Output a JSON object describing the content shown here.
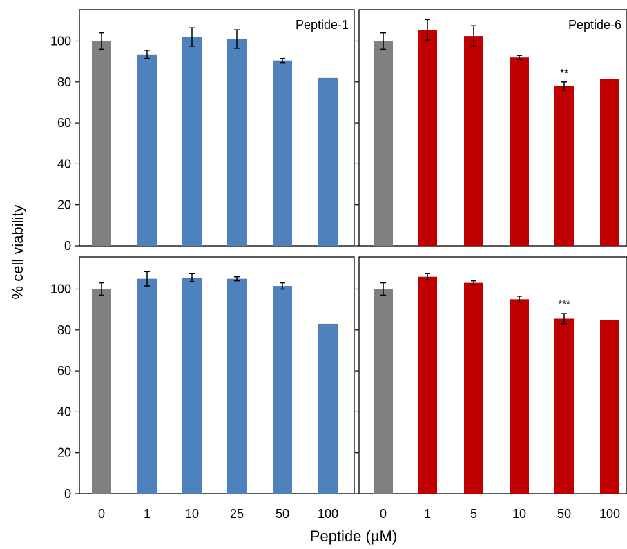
{
  "figure": {
    "ylabel": "% cell viability",
    "xlabel": "Peptide (µM)"
  },
  "chart_data": [
    {
      "type": "bar",
      "panel": "top-left",
      "title": "Peptide-1",
      "categories": [
        "0",
        "1",
        "10",
        "25",
        "50",
        "100"
      ],
      "values": [
        100,
        93.5,
        102,
        101,
        90.5,
        82
      ],
      "errors": [
        4,
        2,
        4.5,
        4.5,
        1,
        0
      ],
      "bar_colors": [
        "#808080",
        "#4f81bd",
        "#4f81bd",
        "#4f81bd",
        "#4f81bd",
        "#4f81bd"
      ],
      "annotations": [
        "",
        "",
        "",
        "",
        "",
        ""
      ],
      "ylim": [
        0,
        115
      ],
      "yticks": [
        0,
        20,
        40,
        60,
        80,
        100
      ],
      "show_ytick_labels": true,
      "show_xtick_labels": false
    },
    {
      "type": "bar",
      "panel": "top-right",
      "title": "Peptide-6",
      "categories": [
        "0",
        "1",
        "5",
        "10",
        "50",
        "100"
      ],
      "values": [
        100,
        105.5,
        102.5,
        92,
        78,
        81.5
      ],
      "errors": [
        4,
        5,
        5,
        1,
        2,
        0
      ],
      "bar_colors": [
        "#808080",
        "#c00000",
        "#c00000",
        "#c00000",
        "#c00000",
        "#c00000"
      ],
      "annotations": [
        "",
        "",
        "",
        "",
        "**",
        ""
      ],
      "ylim": [
        0,
        115
      ],
      "yticks": [
        0,
        20,
        40,
        60,
        80,
        100
      ],
      "show_ytick_labels": false,
      "show_xtick_labels": false
    },
    {
      "type": "bar",
      "panel": "bottom-left",
      "title": "",
      "categories": [
        "0",
        "1",
        "10",
        "25",
        "50",
        "100"
      ],
      "values": [
        100,
        105,
        105.5,
        105,
        101.5,
        83
      ],
      "errors": [
        3,
        3.5,
        2,
        1,
        1.5,
        0
      ],
      "bar_colors": [
        "#808080",
        "#4f81bd",
        "#4f81bd",
        "#4f81bd",
        "#4f81bd",
        "#4f81bd"
      ],
      "annotations": [
        "",
        "",
        "",
        "",
        "",
        ""
      ],
      "ylim": [
        0,
        115
      ],
      "yticks": [
        0,
        20,
        40,
        60,
        80,
        100
      ],
      "show_ytick_labels": true,
      "show_xtick_labels": true
    },
    {
      "type": "bar",
      "panel": "bottom-right",
      "title": "",
      "categories": [
        "0",
        "1",
        "5",
        "10",
        "50",
        "100"
      ],
      "values": [
        100,
        106,
        103,
        95,
        85.5,
        85
      ],
      "errors": [
        3,
        1.5,
        1,
        1.5,
        2.5,
        0
      ],
      "bar_colors": [
        "#808080",
        "#c00000",
        "#c00000",
        "#c00000",
        "#c00000",
        "#c00000"
      ],
      "annotations": [
        "",
        "",
        "",
        "",
        "***",
        ""
      ],
      "ylim": [
        0,
        115
      ],
      "yticks": [
        0,
        20,
        40,
        60,
        80,
        100
      ],
      "show_ytick_labels": false,
      "show_xtick_labels": true
    }
  ]
}
